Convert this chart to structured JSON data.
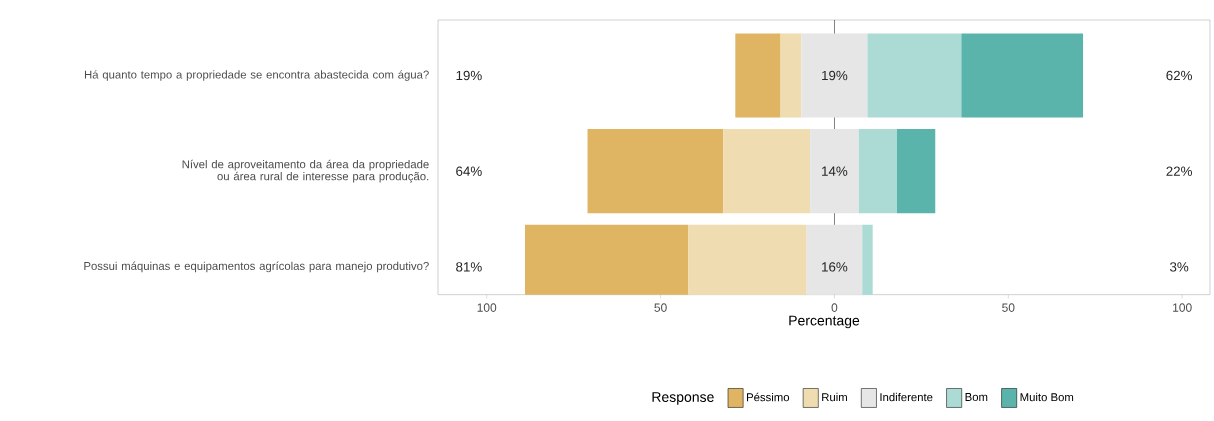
{
  "chart_data": {
    "type": "bar",
    "orientation": "horizontal",
    "xlabel": "Percentage",
    "legend_title": "Response",
    "legend": "bottom",
    "categories": [
      "Há quanto tempo a propriedade se encontra abastecida com água?",
      "Nível de aproveitamento da área da propriedade ou área rural de interesse para produção.",
      "Possui máquinas e equipamentos agrícolas para manejo produtivo?"
    ],
    "series": [
      {
        "name": "Péssimo",
        "color": "#dfb462",
        "values": [
          13,
          39,
          47
        ],
        "base": [
          -28.5,
          -71,
          -89
        ]
      },
      {
        "name": "Ruim",
        "color": "#efdcb0",
        "values": [
          6,
          25,
          34
        ],
        "base": [
          -15.5,
          -32,
          -42
        ]
      },
      {
        "name": "Indiferente",
        "color": "#e6e6e6",
        "values": [
          19,
          14,
          16
        ],
        "base": [
          -9.5,
          -7,
          -8
        ]
      },
      {
        "name": "Bom",
        "color": "#acdad5",
        "values": [
          27,
          11,
          3
        ],
        "base": [
          9.5,
          7,
          8
        ]
      },
      {
        "name": "Muito Bom",
        "color": "#5ab4ac",
        "values": [
          35,
          11,
          null
        ],
        "base": [
          36.5,
          18,
          null
        ]
      }
    ],
    "xlim": [
      -114,
      108
    ],
    "xticks": [
      {
        "value": -100,
        "label": "100"
      },
      {
        "value": -50,
        "label": "50"
      },
      0,
      50,
      100
    ],
    "ref_lines": [
      {
        "axis": "x",
        "value": 0,
        "color": "#000000"
      }
    ],
    "annotations": [
      "19%",
      "19%",
      "62%",
      "64%",
      "14%",
      "22%",
      "81%",
      "16%",
      "3%"
    ]
  }
}
